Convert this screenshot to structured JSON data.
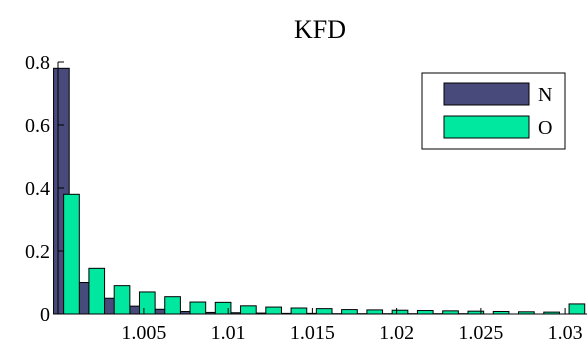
{
  "chart_data": {
    "type": "bar",
    "title": "KFD",
    "xlabel": "",
    "ylabel": "",
    "x": [
      1.0004,
      1.0019,
      1.0034,
      1.0049,
      1.0064,
      1.0079,
      1.0094,
      1.0109,
      1.0124,
      1.0139,
      1.0154,
      1.0169,
      1.0184,
      1.0199,
      1.0214,
      1.0229,
      1.0244,
      1.0259,
      1.0274,
      1.0289,
      1.0304
    ],
    "series": [
      {
        "name": "N",
        "color": "#474a7a",
        "values": [
          0.78,
          0.1,
          0.05,
          0.025,
          0.015,
          0.008,
          0.005,
          0.004,
          0.003,
          0.002,
          0.002,
          0.001,
          0.001,
          0.001,
          0.001,
          0.001,
          0.001,
          0.0,
          0.0,
          0.0,
          0.0
        ]
      },
      {
        "name": "O",
        "color": "#00e8a0",
        "values": [
          0.38,
          0.145,
          0.09,
          0.07,
          0.055,
          0.038,
          0.037,
          0.026,
          0.022,
          0.019,
          0.017,
          0.014,
          0.013,
          0.012,
          0.011,
          0.01,
          0.009,
          0.008,
          0.007,
          0.006,
          0.032
        ]
      }
    ],
    "xlim": [
      0.9999,
      1.0313
    ],
    "ylim": [
      0,
      0.8
    ],
    "xticks": [
      1.005,
      1.01,
      1.015,
      1.02,
      1.025,
      1.03
    ],
    "xtick_labels": [
      "1.005",
      "1.01",
      "1.015",
      "1.02",
      "1.025",
      "1.03"
    ],
    "yticks": [
      0,
      0.2,
      0.4,
      0.6,
      0.8
    ],
    "ytick_labels": [
      "0",
      "0.2",
      "0.4",
      "0.6",
      "0.8"
    ],
    "legend": "top-right",
    "grid": false
  }
}
